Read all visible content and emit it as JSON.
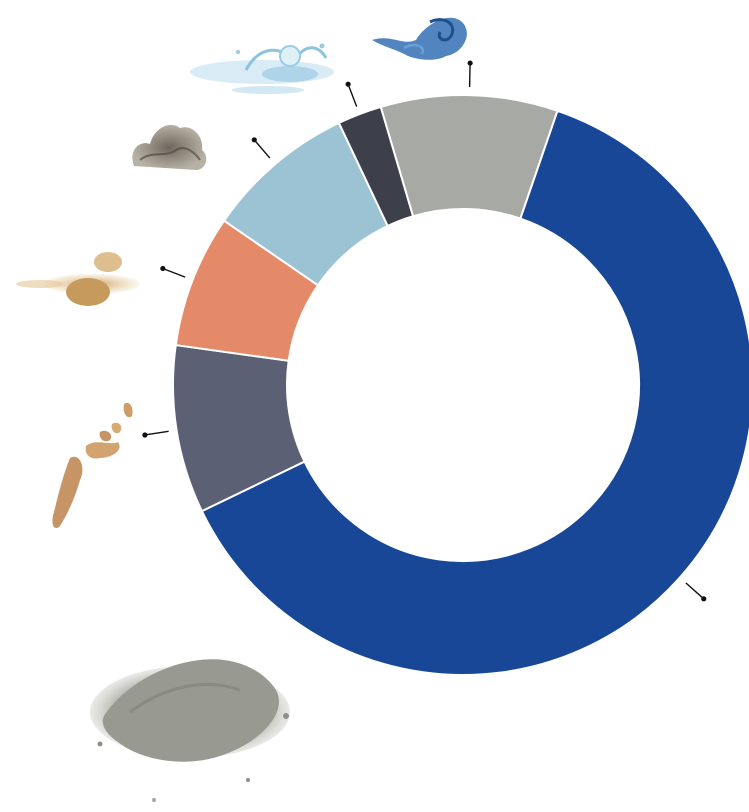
{
  "chart_data": {
    "type": "pie",
    "donut": true,
    "title": "",
    "legend": "none",
    "slices": [
      {
        "material": "ash",
        "value": 63.5,
        "color": "#174796",
        "icon": "ash-pile-icon"
      },
      {
        "material": "wood-fiber",
        "value": 9.5,
        "color": "#5c6075",
        "icon": "wood-chips-icon"
      },
      {
        "material": "sand",
        "value": 7.5,
        "color": "#e58a68",
        "icon": "sand-pile-icon"
      },
      {
        "material": "insulation",
        "value": 8.5,
        "color": "#9cc3d4",
        "icon": "insulation-wool-icon"
      },
      {
        "material": "water",
        "value": 2.5,
        "color": "#3d3f4b",
        "icon": "water-splash-icon"
      },
      {
        "material": "air",
        "value": 10.0,
        "color": "#a7aaa4",
        "icon": "air-swirl-icon"
      }
    ]
  }
}
